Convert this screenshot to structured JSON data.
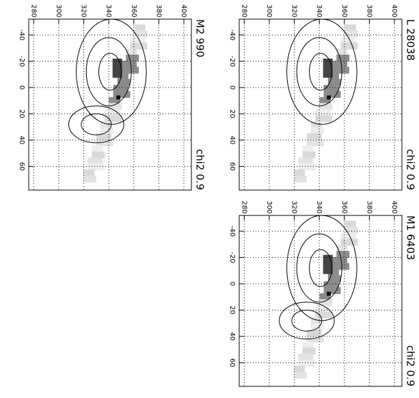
{
  "chart_data": [
    {
      "type": "contour",
      "title": "L 28038",
      "annotation": "chi2 0.9",
      "xlim": [
        -52,
        78
      ],
      "xticks": [
        -40,
        -20,
        0,
        20,
        40,
        60
      ],
      "ylim": [
        276,
        406
      ],
      "yticks": [
        280,
        300,
        320,
        340,
        360,
        380,
        400
      ],
      "grid": true
    },
    {
      "type": "contour",
      "title": "M2 990",
      "annotation": "chi2 0.9",
      "xlim": [
        -52,
        78
      ],
      "xticks": [
        -40,
        -20,
        0,
        20,
        40,
        60
      ],
      "ylim": [
        276,
        406
      ],
      "yticks": [
        280,
        300,
        320,
        340,
        360,
        380,
        400
      ],
      "grid": true
    },
    {
      "type": "contour",
      "title": "M1 6403",
      "annotation": "chi2 0.9",
      "xlim": [
        -52,
        78
      ],
      "xticks": [
        -40,
        -20,
        0,
        20,
        40,
        60
      ],
      "ylim": [
        276,
        406
      ],
      "yticks": [
        280,
        300,
        320,
        340,
        360,
        380,
        400
      ],
      "grid": true
    }
  ]
}
